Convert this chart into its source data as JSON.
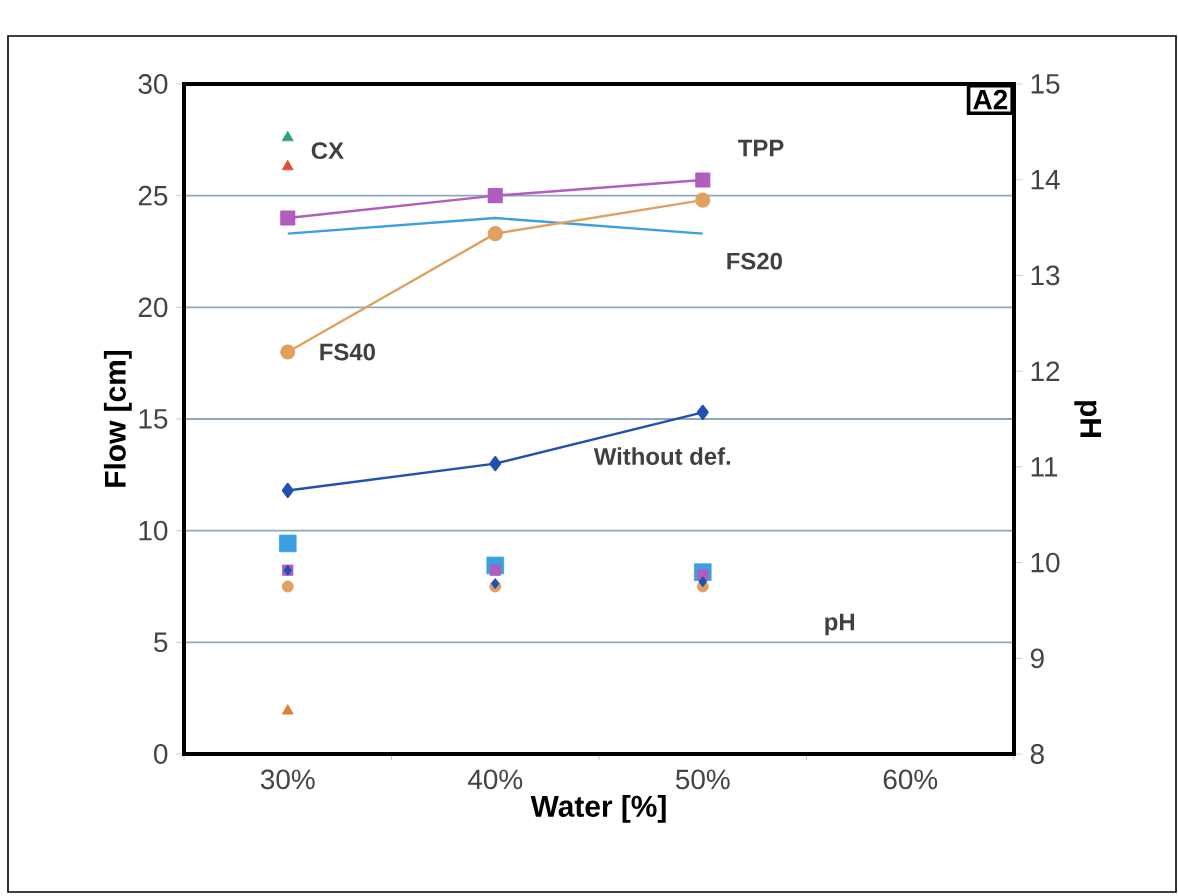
{
  "chart_data": {
    "type": "line",
    "xlabel": "Water [%]",
    "ylabel": "Flow [cm]",
    "y2label": "pH",
    "categories": [
      "30%",
      "40%",
      "50%",
      "60%"
    ],
    "ylim": [
      0,
      30
    ],
    "yticks": [
      0,
      5,
      10,
      15,
      20,
      25,
      30
    ],
    "y2lim": [
      8,
      15
    ],
    "y2ticks": [
      8,
      9,
      10,
      11,
      12,
      13,
      14,
      15
    ],
    "grid": "y",
    "annotations": [
      "A2",
      "pH"
    ],
    "series": [
      {
        "name": "TPP",
        "color": "#b05cc0",
        "marker": "square",
        "values": [
          24,
          25,
          25.7,
          null
        ]
      },
      {
        "name": "FS20",
        "color": "#3aa0e0",
        "marker": "none",
        "values": [
          23.3,
          24,
          23.3,
          null
        ]
      },
      {
        "name": "FS40",
        "color": "#e0a060",
        "marker": "circle",
        "values": [
          18,
          23.3,
          24.8,
          null
        ]
      },
      {
        "name": "Without def.",
        "color": "#2050b0",
        "marker": "diamond",
        "values": [
          11.8,
          13,
          15.3,
          null
        ]
      },
      {
        "name": "CX",
        "type": "scatter",
        "color": "#e05030",
        "marker": "triangle",
        "values": [
          26.3,
          null,
          null,
          null
        ]
      },
      {
        "type": "scatter",
        "color": "#30a080",
        "marker": "triangle",
        "values": [
          27.6,
          null,
          null,
          null
        ]
      },
      {
        "type": "scatter",
        "axis": "y2",
        "color": "#3aa0e0",
        "marker": "square",
        "values": [
          10.2,
          9.97,
          9.9,
          null
        ]
      },
      {
        "type": "scatter",
        "axis": "y2",
        "color": "#b05cc0",
        "marker": "square",
        "values": [
          9.92,
          9.92,
          9.87,
          null
        ]
      },
      {
        "type": "scatter",
        "axis": "y2",
        "color": "#e0a060",
        "marker": "circle",
        "values": [
          9.75,
          9.75,
          9.75,
          null
        ]
      },
      {
        "type": "scatter",
        "axis": "y2",
        "color": "#2050b0",
        "marker": "diamond",
        "values": [
          9.92,
          9.78,
          9.8,
          null
        ]
      },
      {
        "type": "scatter",
        "axis": "y2",
        "color": "#e08030",
        "marker": "triangle",
        "values": [
          8.45,
          null,
          null,
          null
        ]
      }
    ]
  }
}
